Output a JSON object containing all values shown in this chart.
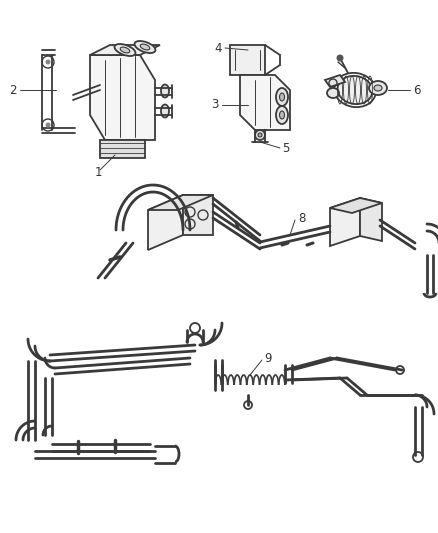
{
  "bg_color": "#ffffff",
  "line_color": "#3a3a3a",
  "label_color": "#333333",
  "fig_width": 4.38,
  "fig_height": 5.33,
  "dpi": 100,
  "lw_tube": 2.0,
  "lw_part": 1.3,
  "lw_label": 0.7,
  "fontsize": 8.5
}
